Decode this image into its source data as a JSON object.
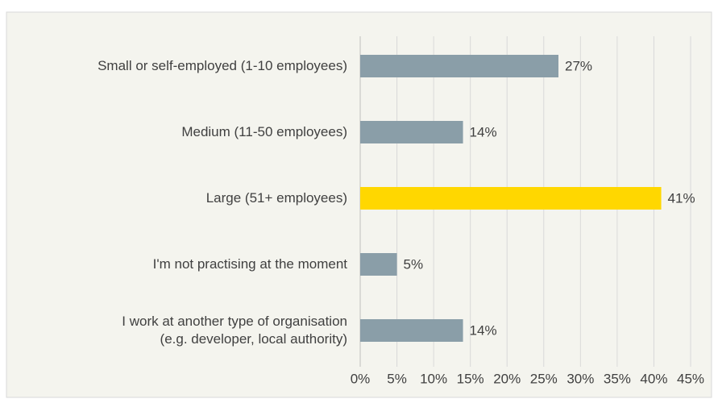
{
  "chart_data": {
    "type": "bar",
    "orientation": "horizontal",
    "categories": [
      "Small or self-employed (1-10 employees)",
      "Medium (11-50 employees)",
      "Large (51+ employees)",
      "I'm not practising at the moment",
      "I work at another type of organisation\n(e.g. developer, local authority)"
    ],
    "values": [
      27,
      14,
      41,
      5,
      14
    ],
    "value_labels": [
      "27%",
      "14%",
      "41%",
      "5%",
      "14%"
    ],
    "colors": [
      "#8a9ea8",
      "#8a9ea8",
      "#ffd700",
      "#8a9ea8",
      "#8a9ea8"
    ],
    "xlim": [
      0,
      45
    ],
    "xticks": [
      {
        "value": 0,
        "label": "0%"
      },
      {
        "value": 5,
        "label": "5%"
      },
      {
        "value": 10,
        "label": "10%"
      },
      {
        "value": 15,
        "label": "15%"
      },
      {
        "value": 20,
        "label": "20%"
      },
      {
        "value": 25,
        "label": "25%"
      },
      {
        "value": 30,
        "label": "30%"
      },
      {
        "value": 35,
        "label": "35%"
      },
      {
        "value": 40,
        "label": "40%"
      },
      {
        "value": 45,
        "label": "45%"
      }
    ],
    "grid": true
  }
}
